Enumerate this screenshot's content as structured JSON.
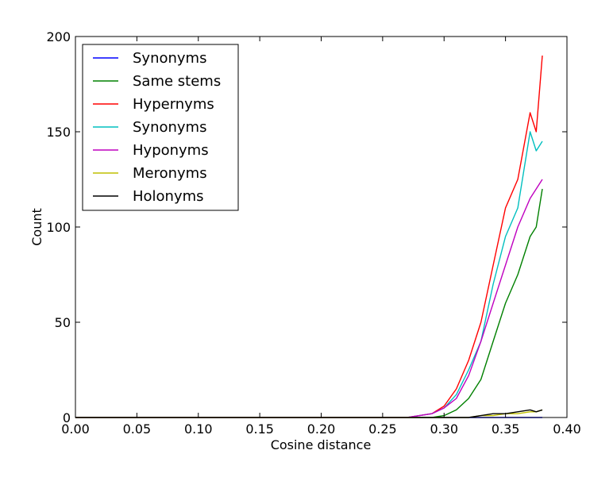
{
  "chart_data": {
    "type": "line",
    "xlabel": "Cosine distance",
    "ylabel": "Count",
    "xlim": [
      0.0,
      0.4
    ],
    "ylim": [
      0,
      200
    ],
    "xticks": [
      "0.00",
      "0.05",
      "0.10",
      "0.15",
      "0.20",
      "0.25",
      "0.30",
      "0.35",
      "0.40"
    ],
    "yticks": [
      "0",
      "50",
      "100",
      "150",
      "200"
    ],
    "grid": false,
    "legend_position": "top-left",
    "x": [
      0.0,
      0.27,
      0.28,
      0.29,
      0.3,
      0.31,
      0.32,
      0.33,
      0.34,
      0.35,
      0.36,
      0.37,
      0.375,
      0.38
    ],
    "series": [
      {
        "name": "Synonyms",
        "color": "#0000ff",
        "values": [
          0,
          0,
          0,
          0,
          0,
          0,
          0,
          0,
          0,
          0,
          0,
          0,
          0,
          0
        ]
      },
      {
        "name": "Same stems",
        "color": "#008000",
        "values": [
          0,
          0,
          0,
          0,
          1,
          4,
          10,
          20,
          40,
          60,
          75,
          95,
          100,
          120
        ]
      },
      {
        "name": "Hypernyms",
        "color": "#ff0000",
        "values": [
          0,
          0,
          1,
          2,
          6,
          15,
          30,
          50,
          80,
          110,
          125,
          160,
          150,
          190
        ]
      },
      {
        "name": "Synonyms",
        "color": "#00bfbf",
        "values": [
          0,
          0,
          1,
          2,
          5,
          12,
          25,
          40,
          70,
          95,
          110,
          150,
          140,
          145
        ]
      },
      {
        "name": "Hyponyms",
        "color": "#bf00bf",
        "values": [
          0,
          0,
          1,
          2,
          5,
          10,
          22,
          40,
          60,
          80,
          100,
          115,
          120,
          125
        ]
      },
      {
        "name": "Meronyms",
        "color": "#bfbf00",
        "values": [
          0,
          0,
          0,
          0,
          0,
          0,
          0,
          1,
          1,
          2,
          2,
          3,
          3,
          4
        ]
      },
      {
        "name": "Holonyms",
        "color": "#000000",
        "values": [
          0,
          0,
          0,
          0,
          0,
          0,
          0,
          1,
          2,
          2,
          3,
          4,
          3,
          4
        ]
      }
    ]
  }
}
